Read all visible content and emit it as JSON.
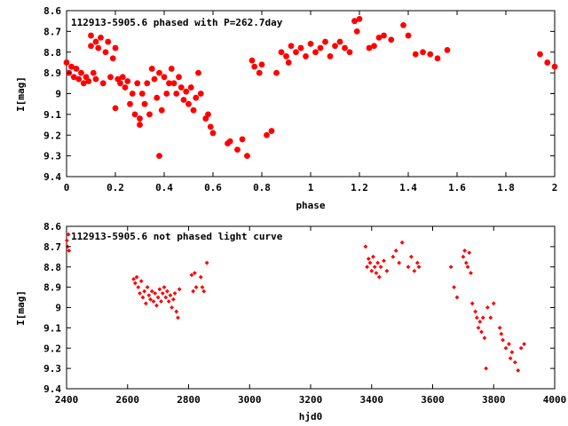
{
  "chart_data": [
    {
      "type": "scatter",
      "title": "112913-5905.6 phased with P=262.7day",
      "xlabel": "phase",
      "ylabel": "I[mag]",
      "xlim": [
        0,
        2
      ],
      "ylim": [
        8.6,
        9.4
      ],
      "y_inverted": true,
      "x_ticks": [
        "0",
        "0.2",
        "0.4",
        "0.6",
        "0.8",
        "1",
        "1.2",
        "1.4",
        "1.6",
        "1.8",
        "2"
      ],
      "y_ticks": [
        "8.6",
        "8.7",
        "8.8",
        "8.9",
        "9",
        "9.1",
        "9.2",
        "9.3",
        "9.4"
      ],
      "grid": false,
      "marker": "filled-circle",
      "color": "#ff0000",
      "series": [
        {
          "x": [
            0.0,
            0.01,
            0.02,
            0.03,
            0.04,
            0.05,
            0.06,
            0.07,
            0.08,
            0.09,
            0.1,
            0.1,
            0.11,
            0.12,
            0.12,
            0.13,
            0.14,
            0.15,
            0.16,
            0.17,
            0.18,
            0.19,
            0.2,
            0.2,
            0.21,
            0.22,
            0.23,
            0.24,
            0.25,
            0.26,
            0.27,
            0.28,
            0.29,
            0.3,
            0.3,
            0.31,
            0.32,
            0.33,
            0.34,
            0.35,
            0.36,
            0.37,
            0.38,
            0.38,
            0.39,
            0.4,
            0.41,
            0.42,
            0.43,
            0.44,
            0.45,
            0.46,
            0.47,
            0.48,
            0.49,
            0.5,
            0.51,
            0.52,
            0.53,
            0.54,
            0.55,
            0.57,
            0.58,
            0.59,
            0.6,
            0.66,
            0.67,
            0.7,
            0.72,
            0.74,
            0.76,
            0.77,
            0.79,
            0.8,
            0.82,
            0.84,
            0.86,
            0.88,
            0.9,
            0.91,
            0.92,
            0.94,
            0.96,
            0.98,
            1.0,
            1.02,
            1.04,
            1.06,
            1.08,
            1.1,
            1.12,
            1.14,
            1.16,
            1.18,
            1.19,
            1.2,
            1.24,
            1.26,
            1.28,
            1.3,
            1.33,
            1.38,
            1.4,
            1.43,
            1.46,
            1.49,
            1.52,
            1.56,
            1.94,
            1.97,
            2.0
          ],
          "y": [
            8.85,
            8.9,
            8.87,
            8.92,
            8.88,
            8.93,
            8.9,
            8.95,
            8.92,
            8.94,
            8.77,
            8.72,
            8.9,
            8.75,
            8.93,
            8.78,
            8.73,
            8.95,
            8.8,
            8.75,
            8.92,
            8.83,
            8.78,
            9.07,
            8.93,
            8.95,
            8.92,
            8.97,
            8.94,
            9.05,
            9.0,
            9.1,
            8.95,
            9.12,
            9.15,
            9.0,
            9.05,
            8.95,
            9.1,
            8.88,
            8.93,
            9.02,
            8.9,
            9.3,
            9.08,
            8.92,
            9.0,
            8.95,
            8.88,
            8.95,
            9.0,
            8.92,
            8.97,
            9.03,
            8.99,
            9.05,
            8.97,
            9.08,
            9.02,
            8.9,
            9.0,
            9.12,
            9.1,
            9.16,
            9.19,
            9.24,
            9.23,
            9.27,
            9.22,
            9.3,
            8.84,
            8.87,
            8.9,
            8.86,
            9.2,
            9.18,
            8.9,
            8.8,
            8.82,
            8.85,
            8.77,
            8.8,
            8.78,
            8.82,
            8.76,
            8.8,
            8.78,
            8.75,
            8.82,
            8.77,
            8.75,
            8.78,
            8.8,
            8.65,
            8.7,
            8.64,
            8.78,
            8.77,
            8.73,
            8.72,
            8.74,
            8.67,
            8.72,
            8.81,
            8.8,
            8.81,
            8.83,
            8.79,
            8.81,
            8.85,
            8.87
          ]
        }
      ]
    },
    {
      "type": "scatter",
      "title": "112913-5905.6 not phased light curve",
      "xlabel": "hjd0",
      "ylabel": "I[mag]",
      "xlim": [
        2400,
        4000
      ],
      "ylim": [
        8.6,
        9.4
      ],
      "y_inverted": true,
      "x_ticks": [
        "2400",
        "2600",
        "2800",
        "3000",
        "3200",
        "3400",
        "3600",
        "3800",
        "4000"
      ],
      "y_ticks": [
        "8.6",
        "8.7",
        "8.8",
        "8.9",
        "9",
        "9.1",
        "9.2",
        "9.3",
        "9.4"
      ],
      "grid": false,
      "marker": "small-diamond",
      "color": "#ff0000",
      "series": [
        {
          "x": [
            2401,
            2403,
            2406,
            2408,
            2620,
            2625,
            2630,
            2635,
            2640,
            2645,
            2650,
            2655,
            2660,
            2665,
            2670,
            2675,
            2680,
            2685,
            2690,
            2695,
            2700,
            2705,
            2710,
            2715,
            2720,
            2725,
            2730,
            2735,
            2740,
            2745,
            2750,
            2755,
            2760,
            2765,
            2770,
            2810,
            2815,
            2820,
            2825,
            2840,
            2845,
            2850,
            2860,
            3380,
            3385,
            3390,
            3395,
            3400,
            3405,
            3410,
            3415,
            3420,
            3425,
            3430,
            3440,
            3450,
            3470,
            3480,
            3490,
            3500,
            3520,
            3530,
            3540,
            3550,
            3555,
            3660,
            3670,
            3680,
            3700,
            3705,
            3710,
            3715,
            3720,
            3725,
            3730,
            3740,
            3745,
            3750,
            3755,
            3760,
            3765,
            3770,
            3775,
            3780,
            3790,
            3800,
            3820,
            3825,
            3830,
            3840,
            3850,
            3855,
            3860,
            3870,
            3880,
            3890,
            3900
          ],
          "y": [
            8.67,
            8.7,
            8.64,
            8.72,
            8.86,
            8.88,
            8.85,
            8.9,
            8.93,
            8.87,
            8.95,
            8.92,
            8.98,
            8.9,
            8.94,
            8.96,
            8.92,
            8.97,
            8.93,
            8.99,
            8.95,
            8.91,
            8.97,
            8.93,
            8.9,
            8.95,
            8.92,
            8.97,
            8.94,
            9.0,
            8.96,
            8.93,
            9.02,
            9.05,
            8.91,
            8.84,
            8.92,
            8.83,
            8.9,
            8.85,
            8.9,
            8.92,
            8.78,
            8.7,
            8.8,
            8.76,
            8.78,
            8.82,
            8.75,
            8.8,
            8.83,
            8.78,
            8.85,
            8.8,
            8.77,
            8.82,
            8.75,
            8.72,
            8.78,
            8.68,
            8.8,
            8.75,
            8.82,
            8.78,
            8.8,
            8.8,
            8.9,
            8.95,
            8.75,
            8.72,
            8.78,
            8.8,
            8.73,
            8.83,
            8.98,
            9.02,
            9.05,
            9.1,
            9.07,
            9.12,
            9.05,
            9.15,
            9.3,
            9.0,
            9.05,
            8.98,
            9.1,
            9.13,
            9.16,
            9.2,
            9.18,
            9.25,
            9.22,
            9.27,
            9.31,
            9.2,
            9.18
          ]
        }
      ]
    }
  ]
}
